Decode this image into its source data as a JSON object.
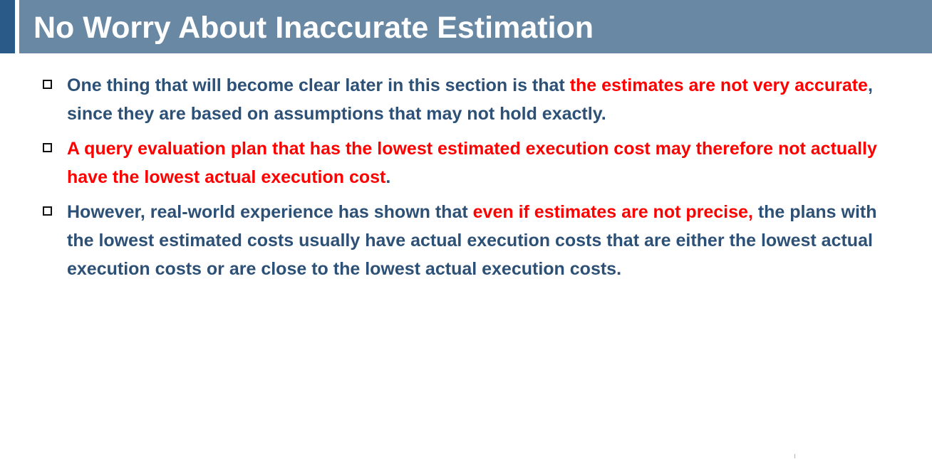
{
  "slide": {
    "title": "No Worry About Inaccurate Estimation"
  },
  "bullets": [
    {
      "marker_icon": "hollow-square-icon",
      "part1": "One thing that will become clear later in this section is that ",
      "part2": "the estimates are not very accurate",
      "part3": ", since they are based on assumptions that may not hold exactly."
    },
    {
      "marker_icon": "hollow-square-icon",
      "part1": "A query evaluation plan that has the lowest estimated execution cost may therefore not actually have the lowest actual execution cost",
      "part2": "."
    },
    {
      "marker_icon": "hollow-square-icon",
      "part1": "However, real-world experience has shown that ",
      "part2": "even if estimates are not precise,",
      "part3": " the plans with the lowest estimated costs usually have actual execution costs that are either the lowest actual execution costs or are close to the lowest actual execution costs."
    }
  ],
  "colors": {
    "title_bar": "#6888a4",
    "title_accent": "#2a5a87",
    "body_text": "#2d5176",
    "highlight_text": "#ff0000"
  }
}
